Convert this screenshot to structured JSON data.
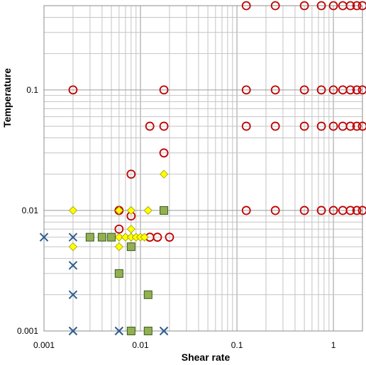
{
  "chart_data": {
    "type": "scatter",
    "xlabel": "Shear rate",
    "ylabel": "Temperature",
    "xscale": "log",
    "yscale": "log",
    "xlim": [
      0.001,
      2
    ],
    "ylim": [
      0.001,
      0.5
    ],
    "grid": true,
    "x_tick_labels": [
      {
        "value": 0.001,
        "label": "0.001"
      },
      {
        "value": 0.01,
        "label": "0.01"
      },
      {
        "value": 0.1,
        "label": "0.1"
      },
      {
        "value": 1,
        "label": "1"
      }
    ],
    "y_tick_labels": [
      {
        "value": 0.001,
        "label": "0.001"
      },
      {
        "value": 0.01,
        "label": "0.01"
      },
      {
        "value": 0.1,
        "label": "0.1"
      }
    ],
    "series": [
      {
        "marker": "circle-open",
        "color": "#c00000",
        "points": [
          [
            0.125,
            0.5
          ],
          [
            0.25,
            0.5
          ],
          [
            0.5,
            0.5
          ],
          [
            0.75,
            0.5
          ],
          [
            1.0,
            0.5
          ],
          [
            1.25,
            0.5
          ],
          [
            1.5,
            0.5
          ],
          [
            1.75,
            0.5
          ],
          [
            2.0,
            0.5
          ],
          [
            0.002,
            0.1
          ],
          [
            0.0175,
            0.1
          ],
          [
            0.125,
            0.1
          ],
          [
            0.25,
            0.1
          ],
          [
            0.5,
            0.1
          ],
          [
            0.75,
            0.1
          ],
          [
            1.0,
            0.1
          ],
          [
            1.25,
            0.1
          ],
          [
            1.5,
            0.1
          ],
          [
            1.75,
            0.1
          ],
          [
            2.0,
            0.1
          ],
          [
            0.0125,
            0.05
          ],
          [
            0.0175,
            0.05
          ],
          [
            0.125,
            0.05
          ],
          [
            0.25,
            0.05
          ],
          [
            0.5,
            0.05
          ],
          [
            0.75,
            0.05
          ],
          [
            1.0,
            0.05
          ],
          [
            1.25,
            0.05
          ],
          [
            1.5,
            0.05
          ],
          [
            1.75,
            0.05
          ],
          [
            2.0,
            0.05
          ],
          [
            0.0175,
            0.03
          ],
          [
            0.008,
            0.02
          ],
          [
            0.125,
            0.01
          ],
          [
            0.25,
            0.01
          ],
          [
            0.5,
            0.01
          ],
          [
            0.75,
            0.01
          ],
          [
            1.0,
            0.01
          ],
          [
            1.25,
            0.01
          ],
          [
            1.5,
            0.01
          ],
          [
            1.75,
            0.01
          ],
          [
            2.0,
            0.01
          ],
          [
            0.006,
            0.01
          ],
          [
            0.008,
            0.009
          ],
          [
            0.006,
            0.007
          ],
          [
            0.0125,
            0.006
          ],
          [
            0.015,
            0.006
          ],
          [
            0.02,
            0.006
          ]
        ]
      },
      {
        "marker": "diamond",
        "color": "#ffff00",
        "stroke": "#9a9a00",
        "points": [
          [
            0.002,
            0.01
          ],
          [
            0.006,
            0.01
          ],
          [
            0.008,
            0.01
          ],
          [
            0.012,
            0.01
          ],
          [
            0.0175,
            0.02
          ],
          [
            0.008,
            0.007
          ],
          [
            0.002,
            0.005
          ],
          [
            0.006,
            0.005
          ],
          [
            0.005,
            0.006
          ],
          [
            0.006,
            0.006
          ],
          [
            0.007,
            0.006
          ],
          [
            0.008,
            0.006
          ],
          [
            0.009,
            0.006
          ],
          [
            0.01,
            0.006
          ],
          [
            0.011,
            0.006
          ]
        ]
      },
      {
        "marker": "square",
        "color": "#92b050",
        "stroke": "#3a5a20",
        "points": [
          [
            0.003,
            0.006
          ],
          [
            0.004,
            0.006
          ],
          [
            0.005,
            0.006
          ],
          [
            0.008,
            0.005
          ],
          [
            0.006,
            0.003
          ],
          [
            0.012,
            0.002
          ],
          [
            0.008,
            0.001
          ],
          [
            0.012,
            0.001
          ],
          [
            0.0175,
            0.01
          ]
        ]
      },
      {
        "marker": "x",
        "color": "#2f5d8f",
        "points": [
          [
            0.001,
            0.006
          ],
          [
            0.002,
            0.006
          ],
          [
            0.002,
            0.0035
          ],
          [
            0.002,
            0.002
          ],
          [
            0.002,
            0.001
          ],
          [
            0.006,
            0.001
          ],
          [
            0.0175,
            0.001
          ]
        ]
      }
    ]
  }
}
